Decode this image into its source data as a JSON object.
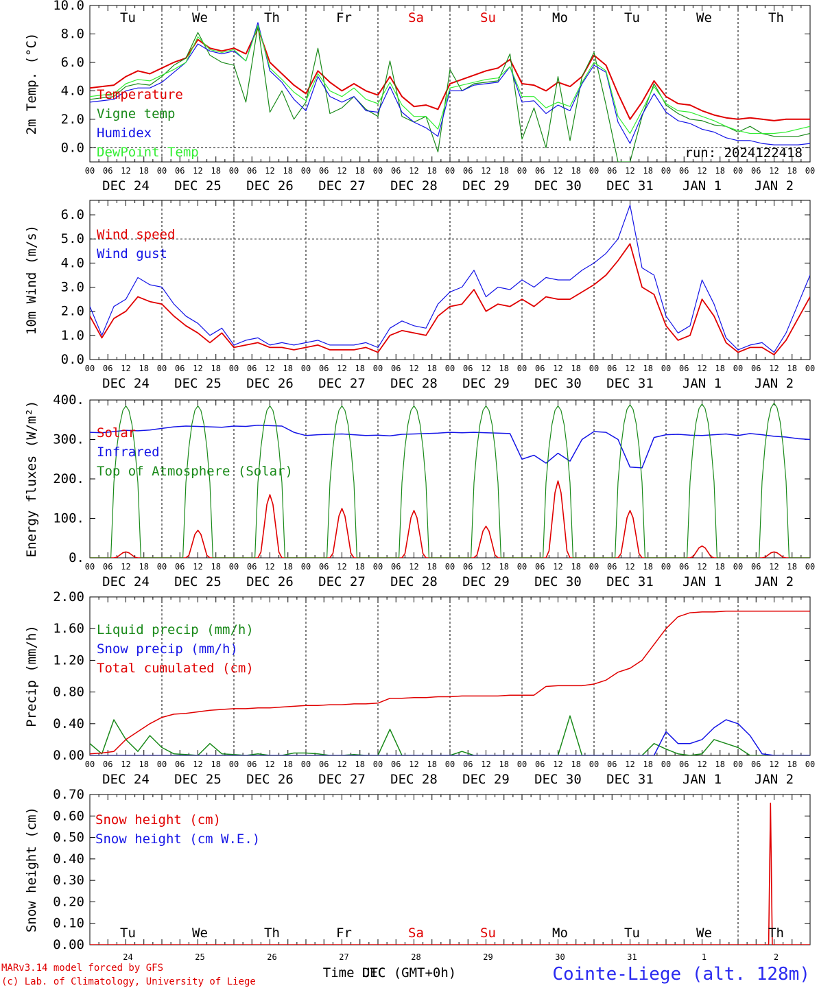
{
  "run_label": "run: 2024122418",
  "footer": {
    "credit_line1": "MARv3.14 model forced by GFS",
    "credit_line2": "(c) Lab. of Climatology, University of Liege",
    "xlabel": "Time UTC (GMT+0h)",
    "xlabel_overlay": "DEC",
    "station": "Cointe-Liege (alt. 128m)"
  },
  "days": {
    "weekday": [
      "Tu",
      "We",
      "Th",
      "Fr",
      "Sa",
      "Su",
      "Mo",
      "Tu",
      "We",
      "Th"
    ],
    "weekend": [
      false,
      false,
      false,
      false,
      true,
      true,
      false,
      false,
      false,
      false
    ],
    "date_labels": [
      "DEC 24",
      "DEC 25",
      "DEC 26",
      "DEC 27",
      "DEC 28",
      "DEC 29",
      "DEC 30",
      "DEC 31",
      "JAN  1",
      "JAN  2"
    ],
    "day_numbers": [
      "24",
      "25",
      "26",
      "27",
      "28",
      "29",
      "30",
      "31",
      "1",
      "2"
    ],
    "hour_ticks": [
      "00",
      "06",
      "12",
      "18"
    ],
    "final_hour": "00"
  },
  "colors": {
    "red": "#e00000",
    "green": "#1a8a1a",
    "blue": "#1414e6",
    "lightgreen": "#33ee33",
    "axis": "#000000",
    "weekend_text": "#e00000"
  },
  "chart_data": [
    {
      "type": "line",
      "ylabel": "2m Temp. (°C)",
      "ylim": [
        -1,
        10
      ],
      "yticks": [
        0,
        2,
        4,
        6,
        8,
        10
      ],
      "ytick_labels": [
        "0.0",
        "2.0",
        "4.0",
        "6.0",
        "8.0",
        "10.0"
      ],
      "dashed_y": 0,
      "x_hours": "0 to 240, 6-hourly points",
      "series": [
        {
          "name": "Temperature",
          "color": "#e00000",
          "width": 2,
          "values": [
            4.2,
            4.3,
            4.4,
            5.0,
            5.4,
            5.2,
            5.6,
            6.0,
            6.3,
            7.6,
            7.0,
            6.8,
            7.0,
            6.6,
            8.4,
            6.0,
            5.2,
            4.4,
            3.8,
            5.4,
            4.6,
            4.0,
            4.5,
            4.0,
            3.7,
            5.0,
            3.6,
            2.9,
            3.0,
            2.7,
            4.5,
            4.8,
            5.1,
            5.4,
            5.6,
            6.2,
            4.5,
            4.4,
            4.0,
            4.6,
            4.3,
            5.0,
            6.5,
            5.8,
            3.8,
            2.0,
            3.2,
            4.7,
            3.6,
            3.1,
            3.0,
            2.6,
            2.3,
            2.1,
            2.0,
            2.1,
            2.0,
            1.9,
            2.0,
            2.0,
            2.0
          ]
        },
        {
          "name": "Vigne temp",
          "color": "#1a8a1a",
          "width": 1.2,
          "values": [
            3.4,
            3.5,
            3.6,
            4.3,
            4.5,
            4.4,
            5.0,
            5.8,
            6.3,
            8.1,
            6.5,
            6.0,
            5.8,
            3.2,
            8.6,
            2.5,
            4.0,
            2.0,
            3.2,
            7.0,
            2.4,
            2.8,
            3.6,
            2.7,
            2.2,
            6.1,
            2.2,
            1.8,
            2.2,
            -0.3,
            5.5,
            4.0,
            4.5,
            4.6,
            4.7,
            6.6,
            0.6,
            2.8,
            0.0,
            5.0,
            0.5,
            5.0,
            6.7,
            3.0,
            -1.0,
            -1.0,
            2.2,
            4.5,
            3.0,
            2.4,
            2.0,
            1.9,
            1.6,
            1.5,
            1.1,
            1.5,
            1.0,
            0.8,
            0.8,
            0.8,
            1.0
          ]
        },
        {
          "name": "Humidex",
          "color": "#1414e6",
          "width": 1.2,
          "values": [
            3.2,
            3.3,
            3.4,
            4.0,
            4.2,
            4.2,
            4.6,
            5.3,
            6.0,
            7.3,
            6.8,
            6.6,
            6.8,
            6.1,
            8.8,
            5.4,
            4.6,
            3.4,
            2.6,
            5.0,
            3.6,
            3.2,
            3.6,
            2.6,
            2.5,
            4.3,
            2.5,
            1.8,
            1.4,
            0.8,
            4.0,
            4.0,
            4.4,
            4.5,
            4.6,
            5.7,
            3.2,
            3.3,
            2.4,
            3.0,
            2.6,
            4.5,
            5.8,
            5.3,
            1.8,
            0.3,
            2.3,
            3.8,
            2.5,
            1.9,
            1.7,
            1.3,
            1.1,
            0.7,
            0.5,
            0.5,
            0.3,
            0.2,
            0.2,
            0.2,
            0.3
          ]
        },
        {
          "name": "DewPoint Temp",
          "color": "#33ee33",
          "width": 1.2,
          "values": [
            3.6,
            3.7,
            3.8,
            4.5,
            4.8,
            4.7,
            5.1,
            5.5,
            6.0,
            7.8,
            6.9,
            6.7,
            6.9,
            6.1,
            8.6,
            5.6,
            4.8,
            3.9,
            3.3,
            5.2,
            4.0,
            3.6,
            4.2,
            3.4,
            3.1,
            4.6,
            3.0,
            2.2,
            2.2,
            1.3,
            4.2,
            4.4,
            4.6,
            4.8,
            4.9,
            5.7,
            3.6,
            3.6,
            2.8,
            3.2,
            2.9,
            4.6,
            6.0,
            5.4,
            2.2,
            1.0,
            2.6,
            4.3,
            3.1,
            2.6,
            2.5,
            2.2,
            1.9,
            1.5,
            1.2,
            1.0,
            1.0,
            1.0,
            1.1,
            1.3,
            1.5
          ]
        }
      ],
      "legend_placement": "left"
    },
    {
      "type": "line",
      "ylabel": "10m Wind (m/s)",
      "ylim": [
        0,
        6.6
      ],
      "yticks": [
        0,
        1,
        2,
        3,
        4,
        5,
        6
      ],
      "ytick_labels": [
        "0.0",
        "1.0",
        "2.0",
        "3.0",
        "4.0",
        "5.0",
        "6.0"
      ],
      "dashed_y": 5,
      "series": [
        {
          "name": "Wind speed",
          "color": "#e00000",
          "width": 1.8,
          "values": [
            1.8,
            0.9,
            1.7,
            2.0,
            2.6,
            2.4,
            2.3,
            1.8,
            1.4,
            1.1,
            0.7,
            1.1,
            0.5,
            0.6,
            0.7,
            0.5,
            0.5,
            0.4,
            0.5,
            0.6,
            0.4,
            0.4,
            0.4,
            0.5,
            0.3,
            1.0,
            1.2,
            1.1,
            1.0,
            1.8,
            2.2,
            2.3,
            2.9,
            2.0,
            2.3,
            2.2,
            2.5,
            2.2,
            2.6,
            2.5,
            2.5,
            2.8,
            3.1,
            3.5,
            4.1,
            4.8,
            3.0,
            2.7,
            1.4,
            0.8,
            1.0,
            2.5,
            1.8,
            0.7,
            0.3,
            0.5,
            0.5,
            0.2,
            0.8,
            1.7,
            2.6
          ]
        },
        {
          "name": "Wind gust",
          "color": "#1414e6",
          "width": 1.2,
          "values": [
            2.2,
            1.0,
            2.2,
            2.5,
            3.4,
            3.1,
            3.0,
            2.3,
            1.8,
            1.5,
            1.0,
            1.3,
            0.6,
            0.8,
            0.9,
            0.6,
            0.7,
            0.6,
            0.7,
            0.8,
            0.6,
            0.6,
            0.6,
            0.7,
            0.5,
            1.3,
            1.6,
            1.4,
            1.3,
            2.3,
            2.8,
            3.0,
            3.7,
            2.6,
            3.0,
            2.9,
            3.3,
            3.0,
            3.4,
            3.3,
            3.3,
            3.7,
            4.0,
            4.4,
            5.0,
            6.4,
            3.8,
            3.5,
            1.8,
            1.1,
            1.4,
            3.3,
            2.3,
            0.9,
            0.4,
            0.6,
            0.7,
            0.3,
            1.1,
            2.3,
            3.5
          ]
        }
      ],
      "legend_placement": "left"
    },
    {
      "type": "line",
      "ylabel": "Energy fluxes (W/m²)",
      "ylim": [
        0,
        400
      ],
      "yticks": [
        0,
        100,
        200,
        300,
        400
      ],
      "ytick_labels": [
        "0.",
        "100.",
        "200.",
        "300.",
        "400."
      ],
      "series": [
        {
          "name": "Solar",
          "color": "#e00000",
          "daily_peak": [
            15,
            70,
            160,
            125,
            120,
            80,
            195,
            120,
            30,
            15
          ]
        },
        {
          "name": "Infrared",
          "color": "#1414e6",
          "values": [
            318,
            317,
            320,
            323,
            322,
            324,
            328,
            332,
            334,
            333,
            332,
            331,
            334,
            333,
            336,
            335,
            334,
            318,
            310,
            312,
            313,
            314,
            312,
            310,
            311,
            309,
            313,
            314,
            315,
            316,
            318,
            317,
            318,
            317,
            316,
            315,
            250,
            260,
            240,
            265,
            245,
            300,
            320,
            318,
            300,
            230,
            228,
            305,
            312,
            313,
            311,
            310,
            312,
            314,
            310,
            315,
            312,
            308,
            306,
            302,
            300
          ]
        },
        {
          "name": "Top of Atmosphere (Solar)",
          "color": "#1a8a1a",
          "daily_peak": [
            385,
            385,
            385,
            385,
            385,
            385,
            385,
            388,
            390,
            392
          ]
        }
      ],
      "legend_placement": "left"
    },
    {
      "type": "line",
      "ylabel": "Precip (mm/h)",
      "ylim": [
        0,
        2
      ],
      "yticks": [
        0,
        0.4,
        0.8,
        1.2,
        1.6,
        2.0
      ],
      "ytick_labels": [
        "0.00",
        "0.40",
        "0.80",
        "1.20",
        "1.60",
        "2.00"
      ],
      "series": [
        {
          "name": "Liquid precip (mm/h)",
          "color": "#1a8a1a",
          "values": [
            0.15,
            0.02,
            0.45,
            0.2,
            0.05,
            0.25,
            0.1,
            0.02,
            0.01,
            0.0,
            0.15,
            0.02,
            0.01,
            0.0,
            0.02,
            0.0,
            0.0,
            0.03,
            0.03,
            0.02,
            0.0,
            0.0,
            0.01,
            0.0,
            0.0,
            0.33,
            0.0,
            0.0,
            0.0,
            0.0,
            0.0,
            0.05,
            0.0,
            0.0,
            0.0,
            0.0,
            0.0,
            0.0,
            0.0,
            0.0,
            0.5,
            0.0,
            0.0,
            0.0,
            0.0,
            0.0,
            0.0,
            0.15,
            0.08,
            0.02,
            0.0,
            0.02,
            0.2,
            0.15,
            0.1,
            0.0,
            0.0,
            0.0,
            0.0,
            0.0,
            0.0
          ]
        },
        {
          "name": "Snow precip (mm/h)",
          "color": "#1414e6",
          "values": [
            0,
            0,
            0,
            0,
            0,
            0,
            0,
            0,
            0,
            0,
            0,
            0,
            0,
            0,
            0,
            0,
            0,
            0,
            0,
            0,
            0,
            0,
            0,
            0,
            0,
            0,
            0,
            0,
            0,
            0,
            0,
            0,
            0,
            0,
            0,
            0,
            0,
            0,
            0,
            0,
            0,
            0,
            0,
            0,
            0,
            0,
            0,
            0,
            0.3,
            0.15,
            0.15,
            0.2,
            0.35,
            0.45,
            0.4,
            0.25,
            0.02,
            0.0,
            0.0,
            0.0,
            0.0
          ]
        },
        {
          "name": "Total cumulated (cm)",
          "color": "#e00000",
          "values": [
            0.02,
            0.03,
            0.05,
            0.2,
            0.3,
            0.4,
            0.48,
            0.52,
            0.53,
            0.55,
            0.57,
            0.58,
            0.59,
            0.59,
            0.6,
            0.6,
            0.61,
            0.62,
            0.63,
            0.63,
            0.64,
            0.64,
            0.65,
            0.65,
            0.66,
            0.72,
            0.72,
            0.73,
            0.73,
            0.74,
            0.74,
            0.75,
            0.75,
            0.75,
            0.75,
            0.76,
            0.76,
            0.76,
            0.87,
            0.88,
            0.88,
            0.88,
            0.9,
            0.95,
            1.05,
            1.1,
            1.2,
            1.4,
            1.6,
            1.75,
            1.8,
            1.81,
            1.81,
            1.82,
            1.82,
            1.82,
            1.82,
            1.82,
            1.82,
            1.82,
            1.82
          ]
        }
      ],
      "legend_placement": "left"
    },
    {
      "type": "line",
      "ylabel": "Snow height (cm)",
      "ylim": [
        0,
        0.7
      ],
      "yticks": [
        0,
        0.1,
        0.2,
        0.3,
        0.4,
        0.5,
        0.6,
        0.7
      ],
      "ytick_labels": [
        "0.00",
        "0.10",
        "0.20",
        "0.30",
        "0.40",
        "0.50",
        "0.60",
        "0.70"
      ],
      "dashed_day": 9,
      "series": [
        {
          "name": "Snow height (cm)",
          "color": "#e00000",
          "spike": {
            "day": 9.45,
            "value": 0.66
          }
        },
        {
          "name": "Snow height (cm W.E.)",
          "color": "#1414e6",
          "spike": null
        }
      ],
      "legend_placement": "left"
    }
  ]
}
